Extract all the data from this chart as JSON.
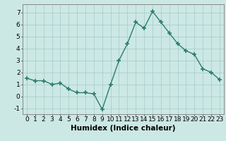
{
  "x": [
    0,
    1,
    2,
    3,
    4,
    5,
    6,
    7,
    8,
    9,
    10,
    11,
    12,
    13,
    14,
    15,
    16,
    17,
    18,
    19,
    20,
    21,
    22,
    23
  ],
  "y": [
    1.5,
    1.3,
    1.3,
    1.0,
    1.1,
    0.6,
    0.3,
    0.3,
    0.2,
    -1.1,
    1.0,
    3.0,
    4.4,
    6.2,
    5.7,
    7.1,
    6.2,
    5.3,
    4.4,
    3.8,
    3.5,
    2.3,
    2.0,
    1.4
  ],
  "line_color": "#2a7d6e",
  "marker": "+",
  "marker_size": 4,
  "bg_color": "#cce8e4",
  "grid_color": "#aacfcb",
  "xlabel": "Humidex (Indice chaleur)",
  "ylim": [
    -1.5,
    7.7
  ],
  "xlim": [
    -0.5,
    23.5
  ],
  "yticks": [
    -1,
    0,
    1,
    2,
    3,
    4,
    5,
    6,
    7
  ],
  "xticks": [
    0,
    1,
    2,
    3,
    4,
    5,
    6,
    7,
    8,
    9,
    10,
    11,
    12,
    13,
    14,
    15,
    16,
    17,
    18,
    19,
    20,
    21,
    22,
    23
  ],
  "xlabel_fontsize": 7.5,
  "tick_fontsize": 6.5,
  "line_width": 1.0
}
